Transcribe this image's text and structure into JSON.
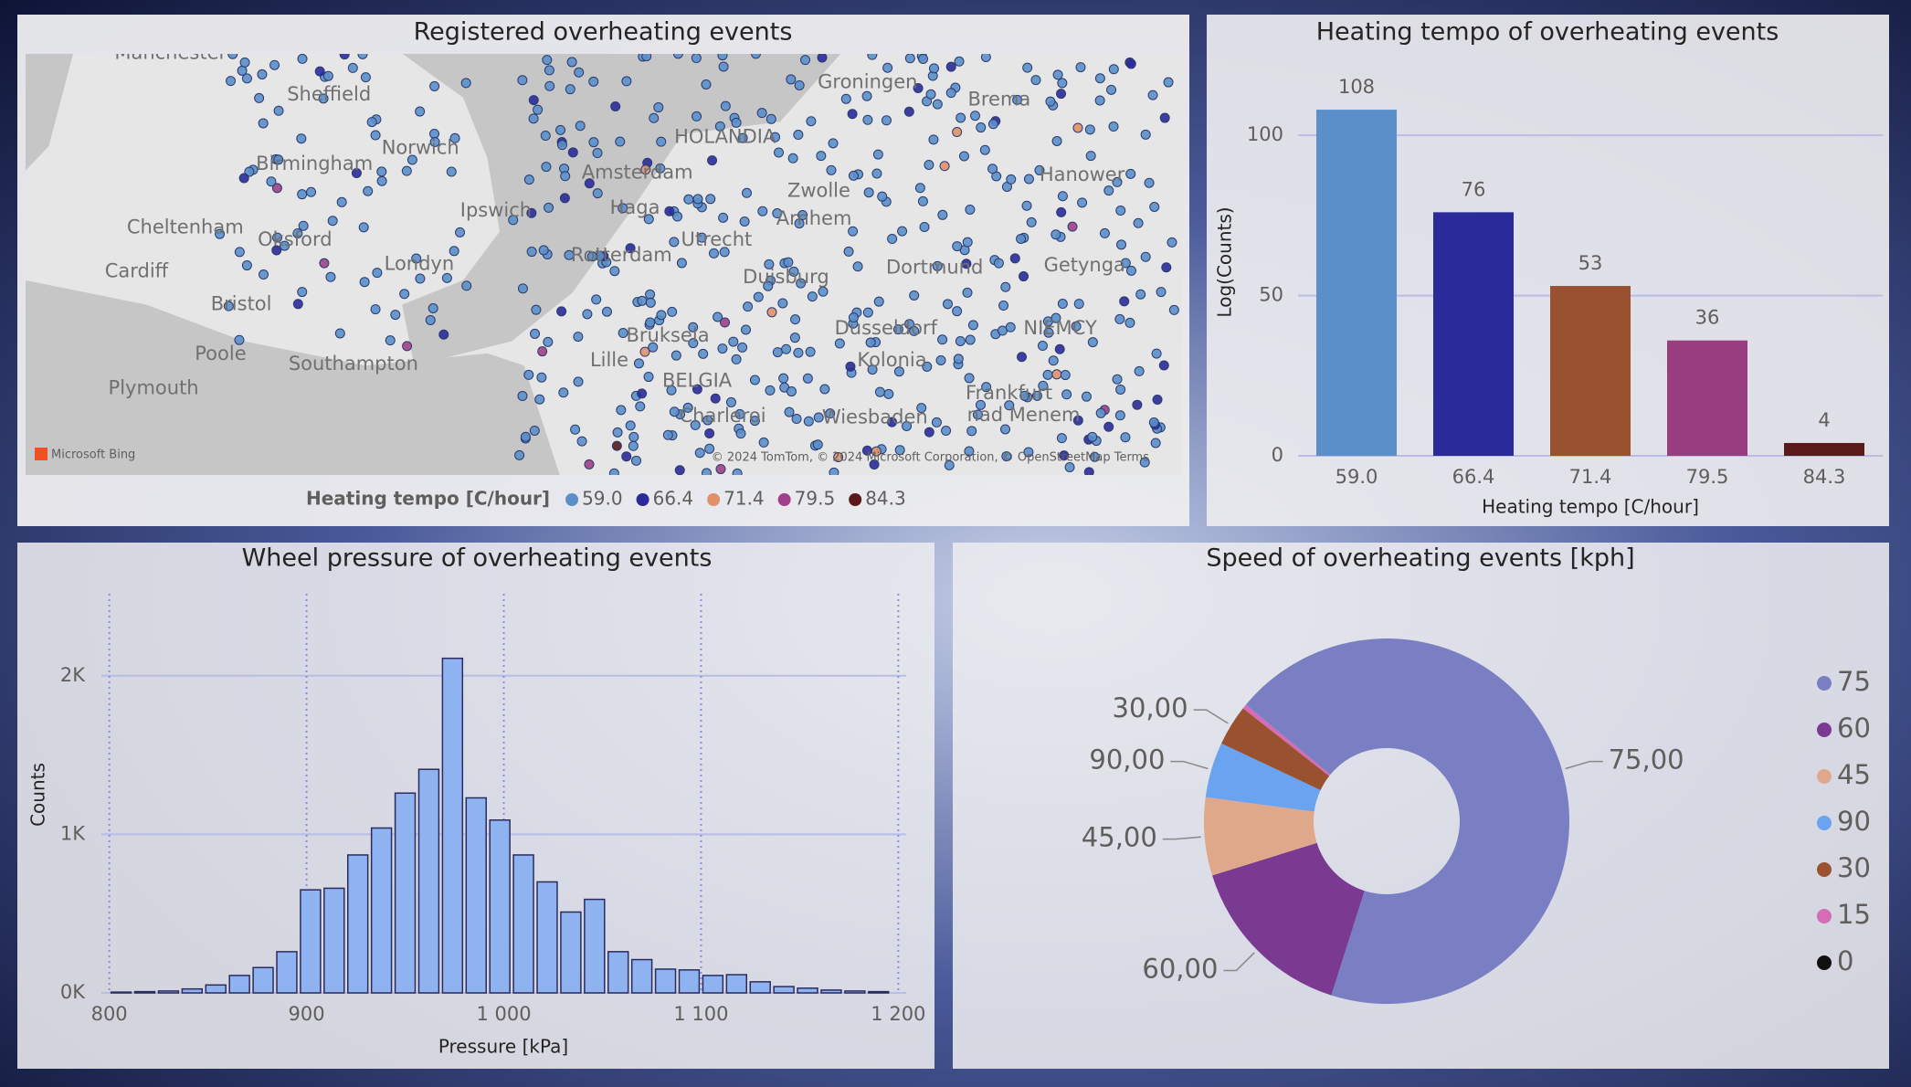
{
  "chart_data": [
    {
      "type": "map",
      "title": "Registered overheating events",
      "legend_title": "Heating tempo [C/hour]",
      "categories": [
        "59.0",
        "66.4",
        "71.4",
        "79.5",
        "84.3"
      ],
      "colors": [
        "#5b8fc9",
        "#2a2a9a",
        "#e0916a",
        "#a0408a",
        "#5a1a1a"
      ],
      "place_labels": [
        "Manchester",
        "Sheffield",
        "Groningen",
        "Brema",
        "Norwich",
        "HOLANDIA",
        "Birmingham",
        "Amsterdam",
        "Hanower",
        "Ipswich",
        "Zwolle",
        "Haga",
        "Arnhem",
        "Cheltenham",
        "Oksford",
        "Rotterdam",
        "Utrecht",
        "Londyn",
        "Cardiff",
        "Duisburg",
        "Dortmund",
        "Getynga",
        "Bristol",
        "Bruksela",
        "Dusseldorf",
        "NIEMCY",
        "Poole",
        "Southampton",
        "Lille",
        "Kolonia",
        "BELGIA",
        "Plymouth",
        "Frankfurt",
        "nad Menem",
        "Charleroi",
        "Wiesbaden"
      ],
      "logo": "Microsoft Bing",
      "attribution": "© 2024 TomTom, © 2024 Microsoft Corporation, © OpenStreetMap  Terms"
    },
    {
      "type": "bar",
      "title": "Heating tempo of overheating events",
      "categories": [
        "59.0",
        "66.4",
        "71.4",
        "79.5",
        "84.3"
      ],
      "values": [
        108,
        76,
        53,
        36,
        4
      ],
      "colors": [
        "#5b8fc9",
        "#2a2a9a",
        "#9a5130",
        "#973d80",
        "#5a1a1a"
      ],
      "xlabel": "Heating tempo [C/hour]",
      "ylabel": "Log(Counts)",
      "ylim": [
        0,
        120
      ],
      "yticks": [
        0,
        50,
        100
      ],
      "grid": true
    },
    {
      "type": "histogram",
      "title": "Wheel pressure of overheating events",
      "bins": [
        800,
        812,
        824,
        836,
        848,
        860,
        872,
        884,
        896,
        908,
        920,
        932,
        944,
        956,
        968,
        980,
        992,
        1004,
        1016,
        1028,
        1040,
        1052,
        1064,
        1076,
        1088,
        1100,
        1112,
        1124,
        1136,
        1148,
        1160,
        1172,
        1184,
        1196
      ],
      "values": [
        5,
        8,
        12,
        25,
        50,
        110,
        160,
        260,
        650,
        660,
        870,
        1040,
        1260,
        1410,
        2110,
        1230,
        1090,
        870,
        700,
        510,
        590,
        260,
        210,
        150,
        145,
        110,
        115,
        70,
        40,
        30,
        18,
        12,
        8
      ],
      "color": "#8fb3f0",
      "xlabel": "Pressure [kPa]",
      "ylabel": "Counts",
      "xlim": [
        796,
        1204
      ],
      "xticks": [
        800,
        900,
        {
          "value": 1000,
          "label": "1 000"
        },
        {
          "value": 1100,
          "label": "1 100"
        },
        {
          "value": 1200,
          "label": "1 200"
        }
      ],
      "ylim": [
        0,
        2500
      ],
      "yticks": [
        {
          "value": 0,
          "label": "0K"
        },
        {
          "value": 1000,
          "label": "1K"
        },
        {
          "value": 2000,
          "label": "2K"
        }
      ],
      "grid": true
    },
    {
      "type": "donut",
      "title": "Speed of overheating events [kph]",
      "categories": [
        "75",
        "60",
        "45",
        "90",
        "30",
        "15",
        "0"
      ],
      "values": [
        68.9,
        15.3,
        6.9,
        4.9,
        3.6,
        0.4,
        0
      ],
      "slice_labels": [
        "75,00",
        "60,00",
        "45,00",
        "90,00",
        "30,00",
        null,
        null
      ],
      "colors": [
        "#7a7fc4",
        "#7b3a91",
        "#e0a88a",
        "#6aa3f0",
        "#9a5130",
        "#d66bb8",
        "#111111"
      ]
    }
  ]
}
